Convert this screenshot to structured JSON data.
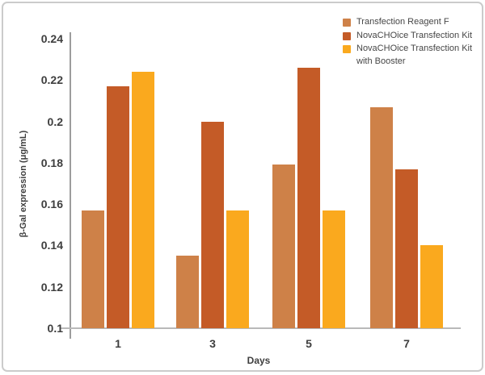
{
  "chart_data": {
    "type": "bar",
    "title": "",
    "xlabel": "Days",
    "ylabel": "β-Gal expression (μg/mL)",
    "categories": [
      "1",
      "3",
      "5",
      "7"
    ],
    "series": [
      {
        "name": "Transfection Reagent F",
        "color": "#CE8148",
        "values": [
          0.157,
          0.135,
          0.179,
          0.207
        ]
      },
      {
        "name": "NovaCHOice Transfection Kit",
        "color": "#C45B27",
        "values": [
          0.217,
          0.2,
          0.226,
          0.177
        ]
      },
      {
        "name": "NovaCHOice Transfection Kit with Booster",
        "color": "#FAA91E",
        "values": [
          0.224,
          0.157,
          0.157,
          0.14
        ]
      }
    ],
    "ylim": [
      0.1,
      0.24
    ],
    "ytick_labels": [
      "0.24",
      "0.22",
      "0.2",
      "0.18",
      "0.16",
      "0.14",
      "0.12",
      "0.1"
    ],
    "yticks": [
      0.24,
      0.22,
      0.2,
      0.18,
      0.16,
      0.14,
      0.12,
      0.1
    ],
    "grid": false,
    "legend_position": "top-right"
  },
  "colors": {
    "y_axis_line": "#9d9d9d",
    "x_axis_line": "#b9b9b9",
    "text": "#3e3e3e",
    "frame_border": "#cbcbcb",
    "background": "#ffffff"
  }
}
